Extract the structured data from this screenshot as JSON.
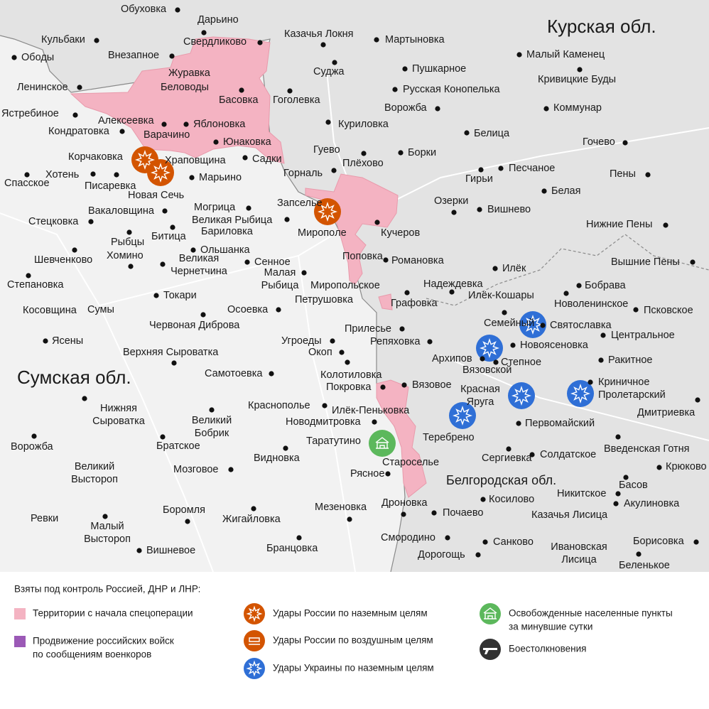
{
  "regions": [
    {
      "name": "Курская обл."
    },
    {
      "name": "Сумская обл."
    },
    {
      "name": "Белгородская обл."
    }
  ],
  "places": [
    {
      "name": "Обуховка"
    },
    {
      "name": "Дарьино"
    },
    {
      "name": "Свердликово"
    },
    {
      "name": "Казачья Локня"
    },
    {
      "name": "Мартыновка"
    },
    {
      "name": "Кульбаки"
    },
    {
      "name": "Ободы"
    },
    {
      "name": "Внезапное"
    },
    {
      "name": "Малый Каменец"
    },
    {
      "name": "Пушкарное"
    },
    {
      "name": "Суджа"
    },
    {
      "name": "Журавка"
    },
    {
      "name": "Кривицкие Буды"
    },
    {
      "name": "Ленинское"
    },
    {
      "name": "Беловоды"
    },
    {
      "name": "Басовка"
    },
    {
      "name": "Гоголевка"
    },
    {
      "name": "Русская Конопелька"
    },
    {
      "name": "Ястребиное"
    },
    {
      "name": "Ворожба"
    },
    {
      "name": "Коммунар"
    },
    {
      "name": "Алексеевка"
    },
    {
      "name": "Яблоновка"
    },
    {
      "name": "Кондратовка"
    },
    {
      "name": "Куриловка"
    },
    {
      "name": "Белица"
    },
    {
      "name": "Варачино"
    },
    {
      "name": "Юнаковка"
    },
    {
      "name": "Гочево"
    },
    {
      "name": "Корчаковка"
    },
    {
      "name": "Храповщина"
    },
    {
      "name": "Садки"
    },
    {
      "name": "Гуево"
    },
    {
      "name": "Плёхово"
    },
    {
      "name": "Борки"
    },
    {
      "name": "Хотень"
    },
    {
      "name": "Марьино"
    },
    {
      "name": "Горналь"
    },
    {
      "name": "Песчаное"
    },
    {
      "name": "Спасское"
    },
    {
      "name": "Писаревка"
    },
    {
      "name": "Гирьи"
    },
    {
      "name": "Пены"
    },
    {
      "name": "Новая Сечь"
    },
    {
      "name": "Белая"
    },
    {
      "name": "Запселье"
    },
    {
      "name": "Озерки"
    },
    {
      "name": "Стецковка"
    },
    {
      "name": "Вакаловщина"
    },
    {
      "name": "Могрица"
    },
    {
      "name": "Вишнево"
    },
    {
      "name": "Великая Рыбица"
    },
    {
      "name": "Миропoле"
    },
    {
      "name": "Кучеров"
    },
    {
      "name": "Нижние Пены"
    },
    {
      "name": "Рыбцы"
    },
    {
      "name": "Бариловка"
    },
    {
      "name": "Битица"
    },
    {
      "name": "Ольшанка"
    },
    {
      "name": "Хомино"
    },
    {
      "lines": [
        "Великая",
        "Чернетчина"
      ]
    },
    {
      "name": "Шевченково"
    },
    {
      "name": "Поповка"
    },
    {
      "name": "Сенное"
    },
    {
      "name": "Романовка"
    },
    {
      "name": "Илёк"
    },
    {
      "name": "Вышние Пены"
    },
    {
      "lines": [
        "Малая",
        "Рыбица"
      ]
    },
    {
      "name": "Степановка"
    },
    {
      "name": "Надеждевка"
    },
    {
      "name": "Бобрава"
    },
    {
      "name": "Миропольское"
    },
    {
      "name": "Токари"
    },
    {
      "name": "Илёк-Кошары"
    },
    {
      "name": "Новоленинское"
    },
    {
      "name": "Петрушовка"
    },
    {
      "name": "Графовка"
    },
    {
      "name": "Сумы"
    },
    {
      "name": "Косовщина"
    },
    {
      "name": "Осоевка"
    },
    {
      "name": "Псковское"
    },
    {
      "name": "Червоная Диброва"
    },
    {
      "name": "Семейный"
    },
    {
      "name": "Святославка"
    },
    {
      "name": "Прилесье"
    },
    {
      "name": "Центральное"
    },
    {
      "name": "Ясены"
    },
    {
      "name": "Угроеды"
    },
    {
      "name": "Репяховка"
    },
    {
      "name": "Новоясеновка"
    },
    {
      "name": "Верхняя Сыроватка"
    },
    {
      "name": "Окоп"
    },
    {
      "name": "Архипов"
    },
    {
      "name": "Ракитное"
    },
    {
      "name": "Степное"
    },
    {
      "name": "Вязовской"
    },
    {
      "name": "Самотоевка"
    },
    {
      "name": "Колотиловка"
    },
    {
      "name": "Криничное"
    },
    {
      "name": "Вязовое"
    },
    {
      "name": "Покровка"
    },
    {
      "lines": [
        "Красная",
        "Яруга"
      ]
    },
    {
      "name": "Пролетарский"
    },
    {
      "name": "Краснополье"
    },
    {
      "lines": [
        "Нижняя",
        "Сыроватка"
      ]
    },
    {
      "name": "Илёк-Пеньковка"
    },
    {
      "lines": [
        "Великий",
        "Бобрик"
      ]
    },
    {
      "name": "Дмитриевка"
    },
    {
      "name": "Новодмитровка"
    },
    {
      "name": "Первомайский"
    },
    {
      "name": "Таратутино"
    },
    {
      "name": "Ворожба"
    },
    {
      "name": "Теребрено"
    },
    {
      "name": "Братское"
    },
    {
      "name": "Введенская Готня"
    },
    {
      "name": "Видновка"
    },
    {
      "name": "Сергиевка"
    },
    {
      "name": "Солдатское"
    },
    {
      "name": "Староселье"
    },
    {
      "lines": [
        "Великий",
        "Выстороп"
      ]
    },
    {
      "name": "Мозговое"
    },
    {
      "name": "Рясное"
    },
    {
      "name": "Крюково"
    },
    {
      "name": "Басов"
    },
    {
      "name": "Никитское"
    },
    {
      "name": "Дроновка"
    },
    {
      "name": "Мезеновка"
    },
    {
      "name": "Косилово"
    },
    {
      "name": "Акулиновка"
    },
    {
      "name": "Боромля"
    },
    {
      "name": "Почаево"
    },
    {
      "name": "Ревки"
    },
    {
      "name": "Казачья Лисица"
    },
    {
      "name": "Жигайловка"
    },
    {
      "lines": [
        "Малый",
        "Выстороп"
      ]
    },
    {
      "name": "Смородино"
    },
    {
      "name": "Санково"
    },
    {
      "lines": [
        "Ивановская",
        "Лисица"
      ]
    },
    {
      "name": "Борисовка"
    },
    {
      "name": "Бранцовка"
    },
    {
      "name": "Вишневое"
    },
    {
      "name": "Дорогощь"
    },
    {
      "name": "Беленькое"
    }
  ],
  "legend": {
    "title": "Взяты под контроль Россией, ДНР и ЛНР:",
    "items": [
      {
        "lines": [
          "Территории с начала спецоперации"
        ]
      },
      {
        "lines": [
          "Продвижение российских войск",
          "по сообщениям военкоров"
        ]
      },
      {
        "lines": [
          "Удары России по наземным целям"
        ]
      },
      {
        "lines": [
          "Удары России по воздушным целям"
        ]
      },
      {
        "lines": [
          "Удары Украины по наземным целям"
        ]
      },
      {
        "lines": [
          "Освобожденные населенные пункты",
          "за минувшие сутки"
        ]
      },
      {
        "lines": [
          "Боестолкновения"
        ]
      }
    ]
  }
}
